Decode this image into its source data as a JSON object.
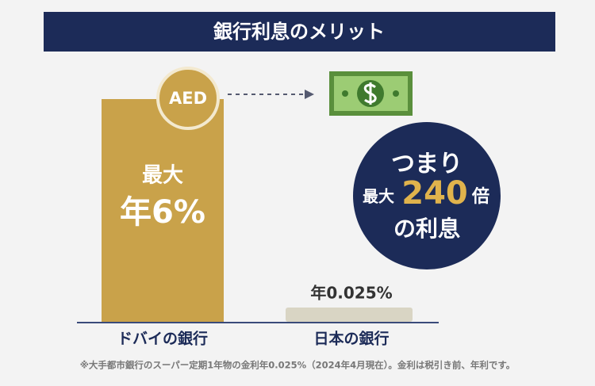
{
  "header": {
    "title": "銀行利息のメリット"
  },
  "dubai": {
    "coin": "AED",
    "max": "最大",
    "rate": "年6%",
    "name": "ドバイの銀行"
  },
  "japan": {
    "rate": "年0.025%",
    "name": "日本の銀行"
  },
  "callout": {
    "line1": "つまり",
    "prefix": "最大",
    "number": "240",
    "suffix": "倍",
    "line3": "の利息"
  },
  "footnote": "※大手都市銀行のスーパー定期1年物の金利年0.025%（2024年4月現在）。金利は税引き前、年利です。"
}
